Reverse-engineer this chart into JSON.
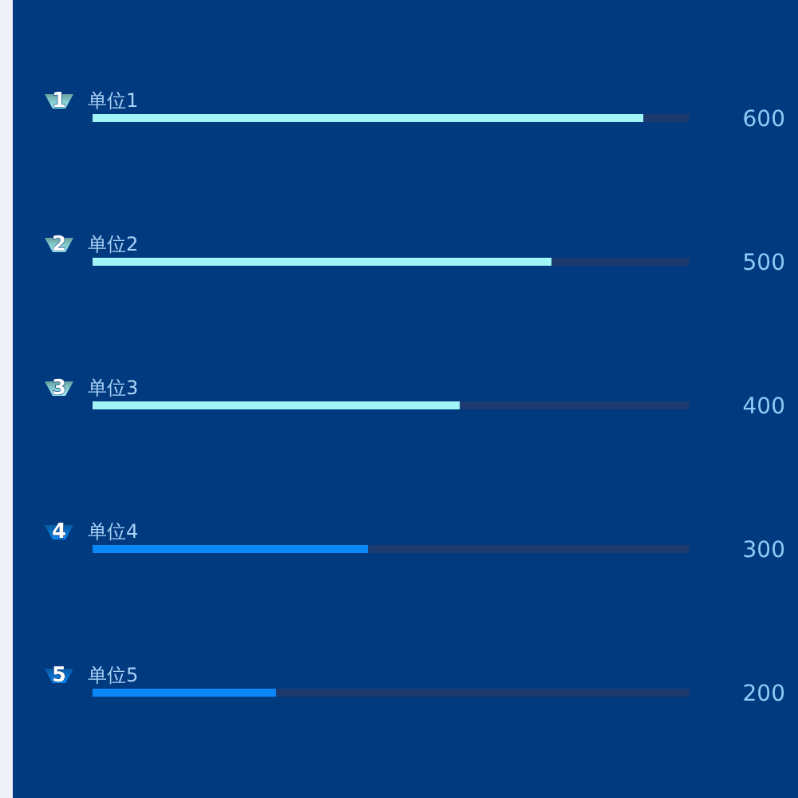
{
  "chart_data": {
    "type": "bar",
    "orientation": "horizontal",
    "stacked": true,
    "categories": [
      "单位1",
      "单位2",
      "单位3",
      "单位4",
      "单位5"
    ],
    "series": [
      {
        "colors": [
          "#a1f5f7",
          "#a1f5f7",
          "#a1f5f7",
          "#0a88f5",
          "#0a88f5"
        ],
        "values": [
          600,
          500,
          400,
          300,
          200
        ],
        "value_labels": [
          "600",
          "500",
          "400",
          "300",
          "200"
        ]
      },
      {
        "color": "#1c3a6e",
        "values": [
          50,
          150,
          250,
          350,
          450
        ]
      }
    ],
    "xlim": [
      0,
      650
    ],
    "tick_labels": "y",
    "annotations": [
      "1",
      "2",
      "3",
      "4",
      "5"
    ]
  }
}
